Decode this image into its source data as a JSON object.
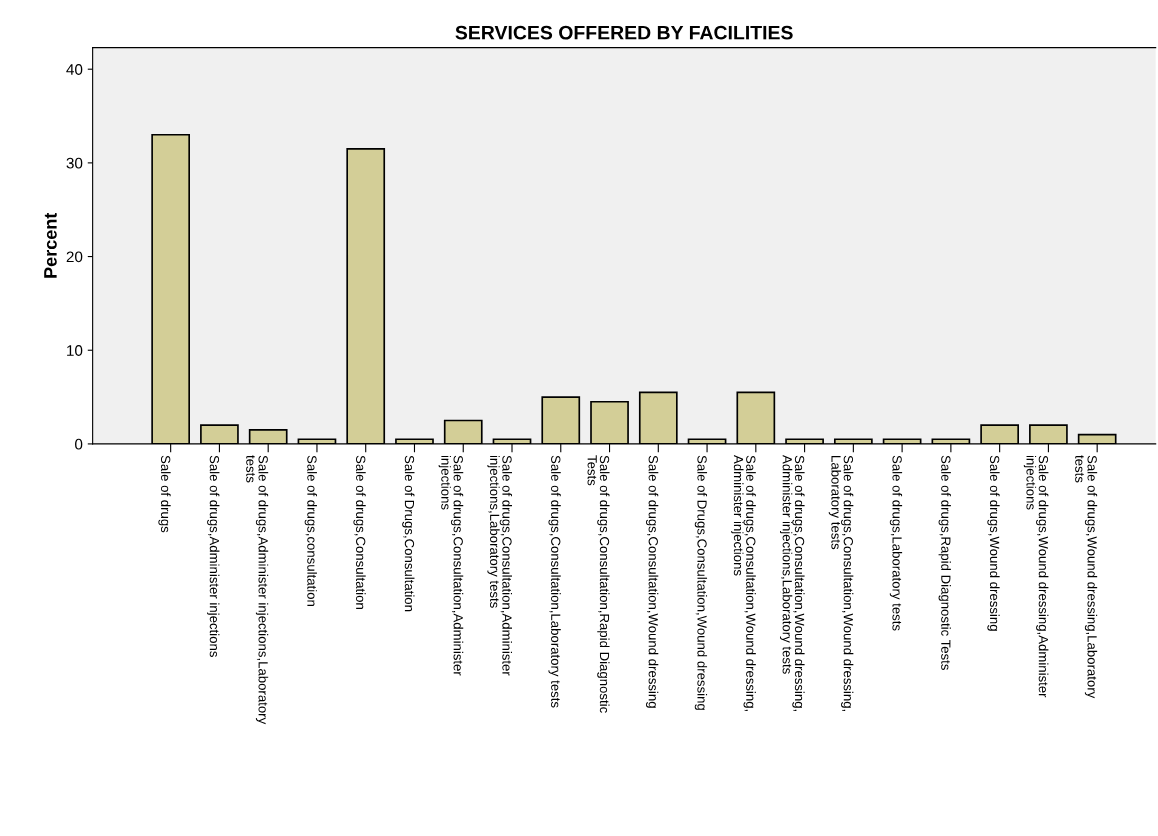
{
  "chart_data": {
    "type": "bar",
    "title": "SERVICES OFFERED BY FACILITIES",
    "ylabel": "Percent",
    "categories": [
      "Sale of drugs",
      "Sale of drugs,Administer injections",
      "Sale of drugs,Administer injections,Laboratory\ntests",
      "Sale of drugs,consultation",
      "Sale of drugs,Consultation",
      "Sale of Drugs,Consultation",
      "Sale of drugs,Consultation,Administer\ninjections",
      "Sale of drugs,Consultation,Administer\ninjections,Laboratory tests",
      "Sale of drugs,Consultation,Laboratory tests",
      "Sale of drugs,Consultation,Rapid Diagnostic\nTests",
      "Sale of drugs,Consultation,Wound dressing",
      "Sale of Drugs,Consultation,Wound dressing",
      "Sale of drugs,Consultation,Wound dressing,\nAdminister injections",
      "Sale of drugs,Consultation,Wound dressing,\nAdminister injections,Laboratory tests",
      "Sale of drugs,Consultation,Wound dressing,\nLaboratory tests",
      "Sale of drugs,Laboratory tests",
      "Sale of drugs,Rapid Diagnostic Tests",
      "Sale of drugs,Wound dressing",
      "Sale of drugs,Wound dressing,Administer\ninjections",
      "Sale of drugs,Wound dressing,Laboratory\ntests"
    ],
    "values": [
      33,
      2,
      1.5,
      0.5,
      31.5,
      0.5,
      2.5,
      0.5,
      5,
      4.5,
      5.5,
      0.5,
      5.5,
      0.5,
      0.5,
      0.5,
      0.5,
      2,
      2,
      1
    ],
    "color": "#d3ce97",
    "ylim": [
      0,
      42.3
    ],
    "yticks": [
      0,
      10,
      20,
      30,
      40
    ],
    "grid": false
  }
}
